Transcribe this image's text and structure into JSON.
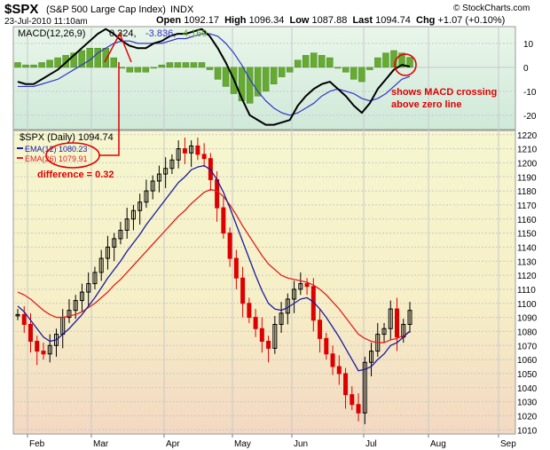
{
  "header": {
    "symbol": "$SPX",
    "name": "(S&P 500 Large Cap Index)",
    "exchange": "INDX",
    "copyright": "© StockCharts.com",
    "date": "23-Jul-2010 11:10am",
    "open_label": "Open",
    "open": "1092.17",
    "high_label": "High",
    "high": "1096.34",
    "low_label": "Low",
    "low": "1087.88",
    "last_label": "Last",
    "last": "1094.74",
    "chg_label": "Chg",
    "chg": "+1.07 (+0.10%)"
  },
  "macd_legend": {
    "label": "MACD(12,26,9)",
    "macd": "0.324,",
    "signal": "-3.836,",
    "hist": "4.160"
  },
  "price_legend": {
    "label": "$SPX (Daily) 1094.74",
    "ema12": "EMA(12) 1080.23",
    "ema26": "EMA(26) 1079.91"
  },
  "annotations": {
    "difference": "difference = 0.32",
    "crossing_line1": "shows MACD crossing",
    "crossing_line2": "above zero line"
  },
  "colors": {
    "price_up": "#000000",
    "price_down": "#dd0000",
    "ema12": "#1a1aa0",
    "ema26": "#e02020",
    "macd_line": "#000000",
    "signal_line": "#3333cc",
    "histogram": "#66aa33",
    "annotation": "#e00000"
  },
  "chart_data": [
    {
      "type": "line",
      "panel": "MACD",
      "x_label_months": [
        "Feb",
        "Mar",
        "Apr",
        "May",
        "Jun",
        "Jul",
        "Aug",
        "Sep"
      ],
      "yticks": [
        10,
        0,
        -10,
        -20
      ],
      "ylim": [
        -26,
        17
      ],
      "series": [
        {
          "name": "MACD(12,26,9)",
          "values": [
            -6,
            -7,
            -7,
            -5,
            -3,
            -1,
            2,
            5,
            8,
            11,
            14,
            16,
            14,
            11,
            9,
            8,
            8,
            10,
            11,
            13,
            14,
            14,
            15,
            16,
            13,
            8,
            2,
            -5,
            -13,
            -20,
            -22,
            -24,
            -24,
            -23,
            -22,
            -16,
            -12,
            -9,
            -7,
            -6,
            -9,
            -12,
            -16,
            -19,
            -15,
            -9,
            -5,
            -1,
            1,
            0.3
          ]
        },
        {
          "name": "signal",
          "values": [
            -8,
            -8,
            -8,
            -7,
            -6,
            -5,
            -3,
            -1,
            1,
            3,
            6,
            8,
            10,
            11,
            11,
            10,
            10,
            10,
            10,
            11,
            12,
            12,
            13,
            14,
            14,
            13,
            10,
            6,
            1,
            -5,
            -10,
            -14,
            -17,
            -19,
            -20,
            -19,
            -17,
            -15,
            -12,
            -10,
            -9,
            -10,
            -11,
            -13,
            -14,
            -13,
            -11,
            -8,
            -5,
            -3.8
          ]
        },
        {
          "name": "histogram",
          "values": [
            2,
            1,
            1,
            2,
            3,
            4,
            5,
            6,
            7,
            8,
            8,
            8,
            4,
            0,
            -2,
            -2,
            -2,
            0,
            1,
            2,
            2,
            2,
            2,
            2,
            -1,
            -5,
            -8,
            -11,
            -14,
            -15,
            -12,
            -10,
            -7,
            -4,
            -2,
            3,
            5,
            6,
            5,
            4,
            0,
            -2,
            -5,
            -6,
            -1,
            4,
            6,
            7,
            6,
            4.2
          ]
        }
      ]
    },
    {
      "type": "line",
      "panel": "Price",
      "x_label_months": [
        "Feb",
        "Mar",
        "Apr",
        "May",
        "Jun",
        "Jul",
        "Aug",
        "Sep"
      ],
      "yticks": [
        1010,
        1020,
        1030,
        1040,
        1050,
        1060,
        1070,
        1080,
        1090,
        1100,
        1110,
        1120,
        1130,
        1140,
        1150,
        1160,
        1170,
        1180,
        1190,
        1200,
        1210,
        1220
      ],
      "ylim": [
        1007,
        1223
      ],
      "series": [
        {
          "name": "$SPX (Daily)",
          "values": [
            1092,
            1085,
            1073,
            1066,
            1064,
            1070,
            1078,
            1090,
            1095,
            1102,
            1108,
            1114,
            1122,
            1132,
            1140,
            1146,
            1152,
            1160,
            1166,
            1172,
            1180,
            1187,
            1192,
            1196,
            1202,
            1210,
            1207,
            1212,
            1206,
            1203,
            1188,
            1168,
            1150,
            1132,
            1118,
            1100,
            1090,
            1082,
            1073,
            1068,
            1085,
            1093,
            1103,
            1110,
            1114,
            1112,
            1088,
            1075,
            1064,
            1055,
            1050,
            1035,
            1028,
            1022,
            1058,
            1066,
            1078,
            1082,
            1096,
            1076,
            1085,
            1095
          ]
        },
        {
          "name": "EMA(12)",
          "values": [
            1098,
            1094,
            1088,
            1082,
            1076,
            1073,
            1074,
            1078,
            1082,
            1087,
            1092,
            1098,
            1104,
            1111,
            1118,
            1124,
            1130,
            1137,
            1143,
            1149,
            1156,
            1162,
            1168,
            1174,
            1180,
            1186,
            1190,
            1195,
            1197,
            1198,
            1195,
            1188,
            1179,
            1168,
            1156,
            1144,
            1132,
            1120,
            1109,
            1100,
            1096,
            1095,
            1097,
            1100,
            1103,
            1104,
            1101,
            1096,
            1090,
            1083,
            1076,
            1068,
            1060,
            1052,
            1053,
            1055,
            1060,
            1064,
            1070,
            1072,
            1076,
            1080.23
          ]
        },
        {
          "name": "EMA(26)",
          "values": [
            1108,
            1106,
            1103,
            1099,
            1095,
            1092,
            1090,
            1090,
            1091,
            1092,
            1094,
            1097,
            1100,
            1104,
            1108,
            1113,
            1117,
            1122,
            1127,
            1132,
            1137,
            1142,
            1147,
            1152,
            1157,
            1162,
            1166,
            1171,
            1175,
            1179,
            1181,
            1180,
            1176,
            1170,
            1163,
            1155,
            1148,
            1141,
            1134,
            1128,
            1124,
            1120,
            1118,
            1117,
            1116,
            1115,
            1113,
            1110,
            1106,
            1101,
            1096,
            1090,
            1084,
            1078,
            1075,
            1073,
            1072,
            1072,
            1074,
            1075,
            1077,
            1079.91
          ]
        }
      ]
    }
  ]
}
